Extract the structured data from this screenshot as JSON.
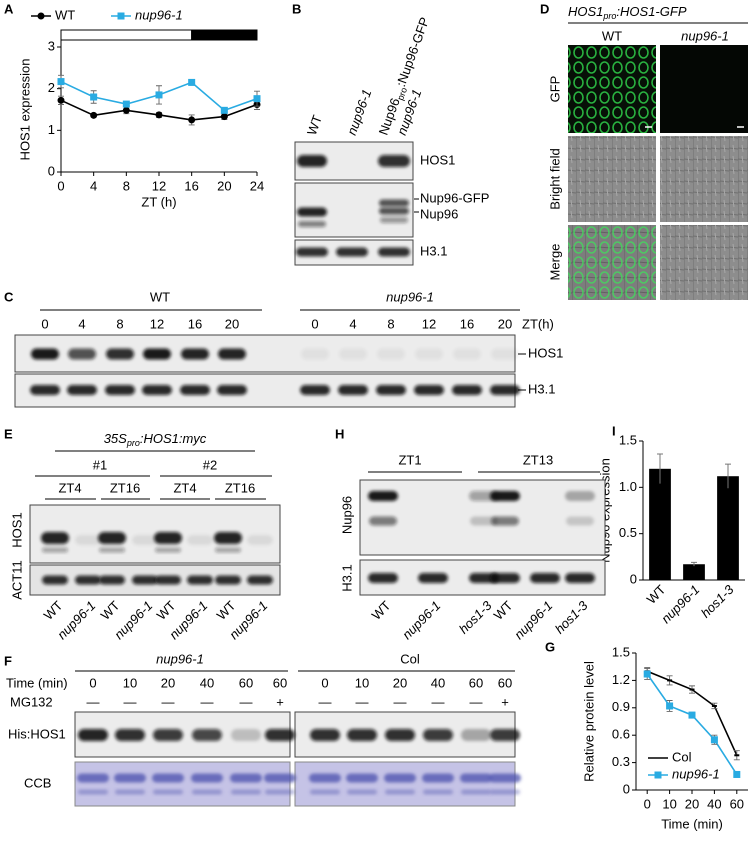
{
  "chart_data": [
    {
      "panel_label": "A",
      "type": "line",
      "ylabel": "HOS1 expression",
      "xlabel": "ZT (h)",
      "legend_position": "top",
      "x": [
        0,
        4,
        8,
        12,
        16,
        20,
        24
      ],
      "xlim": [
        0,
        24
      ],
      "xticks": [
        0,
        4,
        8,
        12,
        16,
        20,
        24
      ],
      "ylim": [
        0,
        3
      ],
      "yticks": [
        0,
        1,
        2,
        3
      ],
      "photoperiod": {
        "light": [
          0,
          16
        ],
        "dark": [
          16,
          24
        ]
      },
      "series": [
        {
          "name": "WT",
          "color": "#000000",
          "marker": "circle",
          "values": [
            1.72,
            1.36,
            1.48,
            1.37,
            1.25,
            1.33,
            1.62
          ],
          "errors": [
            0.1,
            0.04,
            0.08,
            0.06,
            0.12,
            0.07,
            0.12
          ]
        },
        {
          "name": "nup96-1",
          "color": "#29abe2",
          "marker": "square",
          "values": [
            2.17,
            1.8,
            1.63,
            1.85,
            2.15,
            1.48,
            1.76
          ],
          "errors": [
            0.15,
            0.15,
            0.06,
            0.22,
            0.03,
            0.06,
            0.18
          ]
        }
      ]
    },
    {
      "panel_label": "I",
      "type": "bar",
      "ylabel": "Nup96 expression",
      "categories": [
        "WT",
        "nup96-1",
        "hos1-3"
      ],
      "values": [
        1.2,
        0.17,
        1.12
      ],
      "errors": [
        0.16,
        0.02,
        0.13
      ],
      "color": "#000000",
      "ylim": [
        0,
        1.5
      ],
      "yticks": [
        0,
        0.5,
        {
          "value": 1,
          "label": "1.0"
        },
        1.5
      ]
    },
    {
      "panel_label": "G",
      "type": "line",
      "ylabel": "Relative protein level",
      "xlabel": "Time (min)",
      "legend_position": "lower left",
      "categories": [
        "0",
        "10",
        "20",
        "40",
        "60"
      ],
      "ylim": [
        0,
        1.5
      ],
      "yticks": [
        0,
        0.3,
        0.6,
        0.9,
        1.2,
        1.5
      ],
      "series": [
        {
          "name": "Col",
          "color": "#000000",
          "marker": "dash",
          "values": [
            1.3,
            1.2,
            1.1,
            0.92,
            0.38
          ],
          "errors": [
            0.04,
            0.05,
            0.04,
            0.03,
            0.05
          ]
        },
        {
          "name": "nup96-1",
          "color": "#29abe2",
          "marker": "square",
          "values": [
            1.27,
            0.92,
            0.82,
            0.55,
            0.17
          ],
          "errors": [
            0.06,
            0.06,
            0.03,
            0.05,
            0.02
          ]
        }
      ]
    }
  ],
  "panels": {
    "B": {
      "label": "B",
      "lanes": [
        "WT",
        "nup96-1"
      ],
      "construct": [
        "Nup96",
        "pro",
        ":Nup96-GFP"
      ],
      "construct_line2": "nup96-1",
      "rows": [
        "HOS1",
        "Nup96-GFP",
        "Nup96",
        "H3.1"
      ]
    },
    "C": {
      "label": "C",
      "groups": [
        "WT",
        "nup96-1"
      ],
      "timepoints": [
        0,
        4,
        8,
        12,
        16,
        20
      ],
      "unit": "ZT(h)",
      "rows": [
        "HOS1",
        "H3.1"
      ]
    },
    "D": {
      "label": "D",
      "title": [
        "HOS1",
        "pro",
        ":HOS1-GFP"
      ],
      "columns": [
        "WT",
        "nup96-1"
      ],
      "rows": [
        "GFP",
        "Bright field",
        "Merge"
      ]
    },
    "E": {
      "label": "E",
      "title": [
        "35S",
        "pro",
        ":HOS1:myc"
      ],
      "lines": [
        "#1",
        "#2"
      ],
      "timepoints": [
        "ZT4",
        "ZT16"
      ],
      "genotypes": [
        "WT",
        "nup96-1"
      ],
      "rows": [
        "HOS1",
        "ACT11"
      ]
    },
    "H": {
      "label": "H",
      "timepoints": [
        "ZT1",
        "ZT13"
      ],
      "genotypes": [
        "WT",
        "nup96-1",
        "hos1-3"
      ],
      "rows": [
        "Nup96",
        "H3.1"
      ]
    },
    "F": {
      "label": "F",
      "groups": [
        "nup96-1",
        "Col"
      ],
      "time_header": "Time (min)",
      "times": [
        0,
        10,
        20,
        40,
        60,
        60
      ],
      "treatment": "MG132",
      "treatment_signs": [
        "—",
        "—",
        "—",
        "—",
        "—",
        "+"
      ],
      "rows": [
        "His:HOS1",
        "CCB"
      ]
    }
  }
}
